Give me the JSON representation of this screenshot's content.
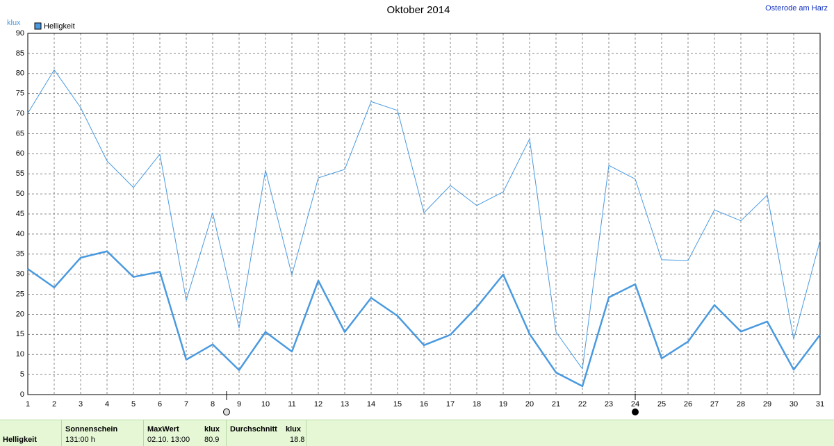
{
  "chart_data": {
    "type": "line",
    "title": "Oktober 2014",
    "location": "Osterode am Harz",
    "y_label": "klux",
    "x": [
      1,
      2,
      3,
      4,
      5,
      6,
      7,
      8,
      9,
      10,
      11,
      12,
      13,
      14,
      15,
      16,
      17,
      18,
      19,
      20,
      21,
      22,
      23,
      24,
      25,
      26,
      27,
      28,
      29,
      30,
      31
    ],
    "xlim": [
      1,
      31
    ],
    "xticks": [
      1,
      2,
      3,
      4,
      5,
      6,
      7,
      8,
      9,
      10,
      11,
      12,
      13,
      14,
      15,
      16,
      17,
      18,
      19,
      20,
      21,
      22,
      23,
      24,
      25,
      26,
      27,
      28,
      29,
      30,
      31
    ],
    "ylim": [
      0,
      90
    ],
    "yticks": [
      0,
      5,
      10,
      15,
      20,
      25,
      30,
      35,
      40,
      45,
      50,
      55,
      60,
      65,
      70,
      75,
      80,
      85,
      90
    ],
    "grid": true,
    "series": [
      {
        "name": "Helligkeit",
        "color": "#4a9ae0",
        "width": 2.5,
        "values": [
          31.3,
          26.7,
          34.1,
          35.7,
          29.3,
          30.6,
          8.7,
          12.5,
          6.1,
          15.6,
          10.7,
          28.4,
          15.6,
          24.1,
          19.6,
          12.3,
          14.9,
          21.8,
          29.9,
          15.1,
          5.5,
          2.1,
          24.2,
          27.5,
          9.0,
          13.2,
          22.3,
          15.7,
          18.2,
          6.2,
          14.9
        ]
      },
      {
        "color": "#4a9ae0",
        "width": 1,
        "values": [
          70.1,
          80.9,
          71.5,
          58.2,
          51.6,
          59.9,
          23.5,
          45.3,
          16.6,
          55.9,
          29.8,
          54.0,
          56.1,
          73.0,
          70.8,
          45.3,
          52.1,
          47.1,
          50.5,
          63.7,
          15.6,
          6.4,
          57.1,
          53.7,
          33.6,
          33.4,
          46.0,
          43.3,
          49.7,
          13.8,
          38.4
        ]
      }
    ]
  },
  "footer": {
    "label": "Helligkeit",
    "sunshine": {
      "title": "Sonnenschein",
      "value": "131:00 h"
    },
    "max": {
      "title": "MaxWert",
      "unit": "klux",
      "time": "02.10. 13:00",
      "value": 80.9
    },
    "avg": {
      "title": "Durchschnitt",
      "unit": "klux",
      "value": 18.8
    }
  }
}
